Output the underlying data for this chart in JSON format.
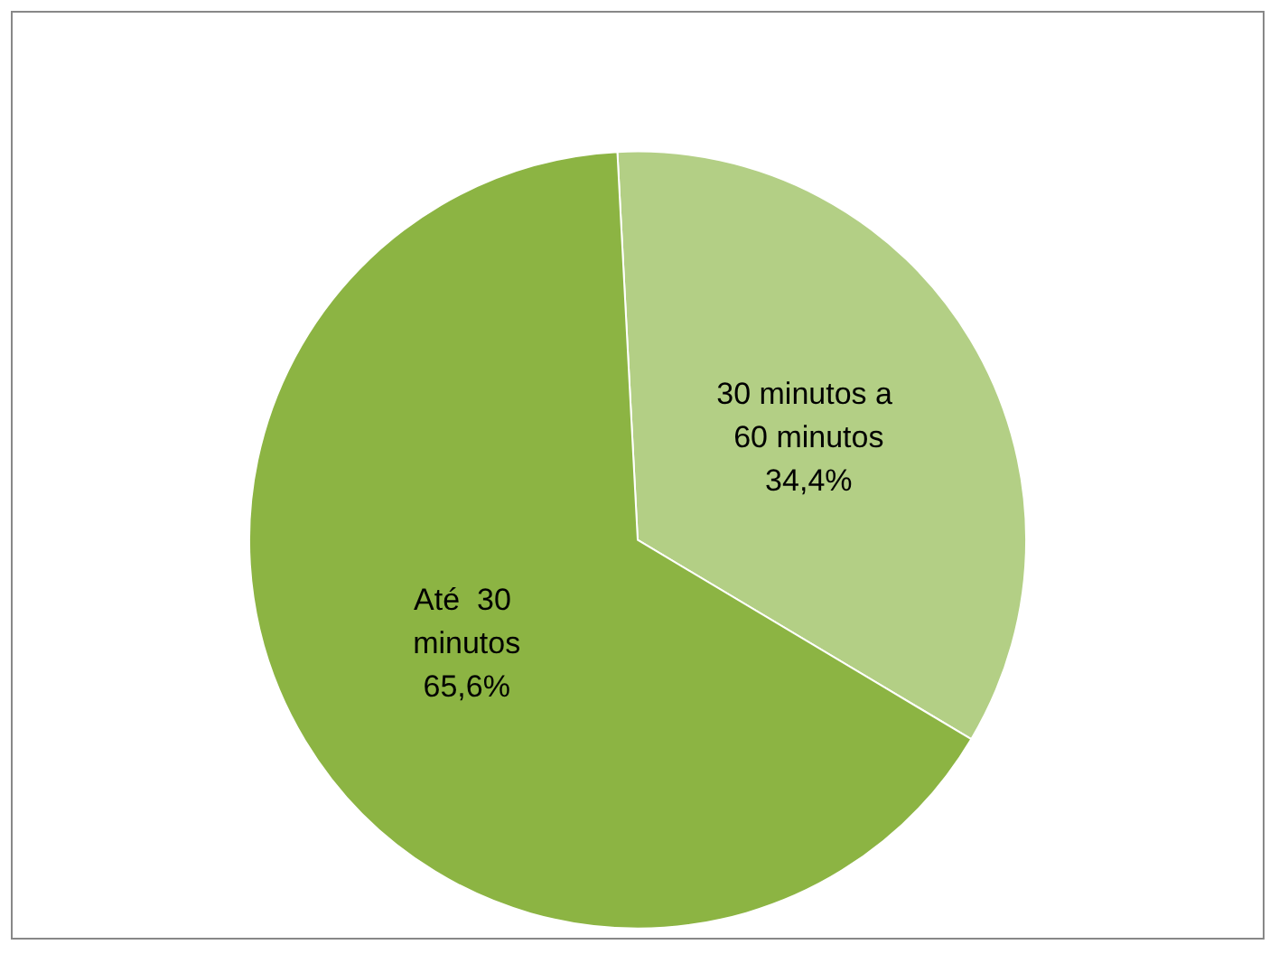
{
  "chart_data": {
    "type": "pie",
    "categories": [
      "30 minutos a 60 minutos",
      "Até  30 minutos"
    ],
    "values": [
      34.4,
      65.6
    ],
    "colors": [
      "#b3cf85",
      "#8cb443"
    ],
    "value_labels": [
      "34,4%",
      "65,6%"
    ],
    "legend": false
  }
}
